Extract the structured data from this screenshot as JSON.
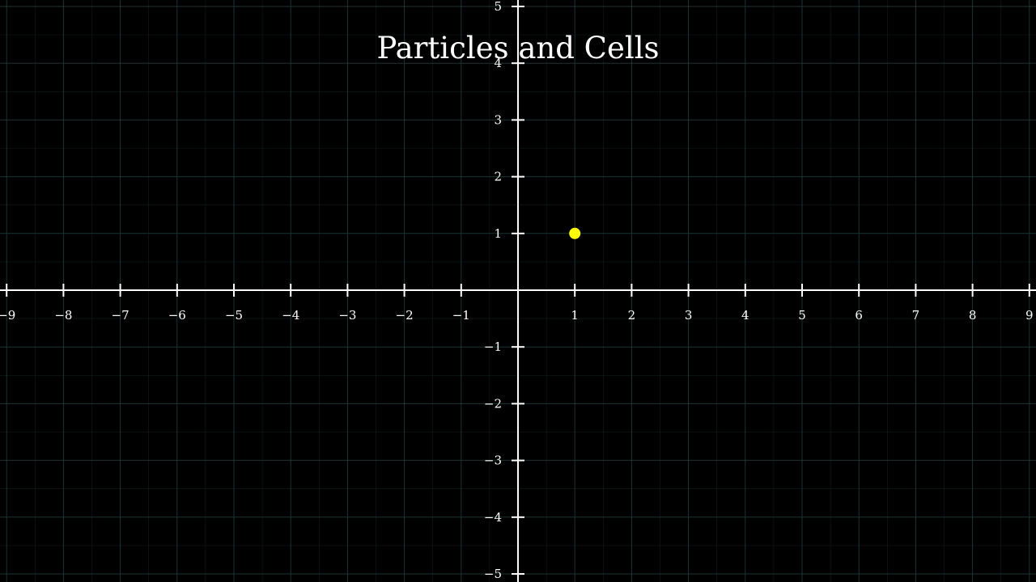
{
  "chart_data": {
    "type": "scatter",
    "title": "Particles and Cells",
    "xlabel": "",
    "ylabel": "",
    "xlim": [
      -9.1,
      9.1
    ],
    "ylim": [
      -5.1,
      5.1
    ],
    "grid": true,
    "x_ticks": [
      -9,
      -8,
      -7,
      -6,
      -5,
      -4,
      -3,
      -2,
      -1,
      1,
      2,
      3,
      4,
      5,
      6,
      7,
      8,
      9
    ],
    "y_ticks": [
      -5,
      -4,
      -3,
      -2,
      -1,
      1,
      2,
      3,
      4,
      5
    ],
    "x_tick_labels": [
      "−9",
      "−8",
      "−7",
      "−6",
      "−5",
      "−4",
      "−3",
      "−2",
      "−1",
      "1",
      "2",
      "3",
      "4",
      "5",
      "6",
      "7",
      "8",
      "9"
    ],
    "y_tick_labels": [
      "−5",
      "−4",
      "−3",
      "−2",
      "−1",
      "1",
      "2",
      "3",
      "4",
      "5"
    ],
    "series": [
      {
        "points": [
          {
            "x": 1,
            "y": 1
          }
        ]
      }
    ]
  },
  "colors": {
    "background": "#000000",
    "axis": "#ffffff",
    "grid": "#1d3b36",
    "point": "#ffff00",
    "text": "#ffffff"
  }
}
